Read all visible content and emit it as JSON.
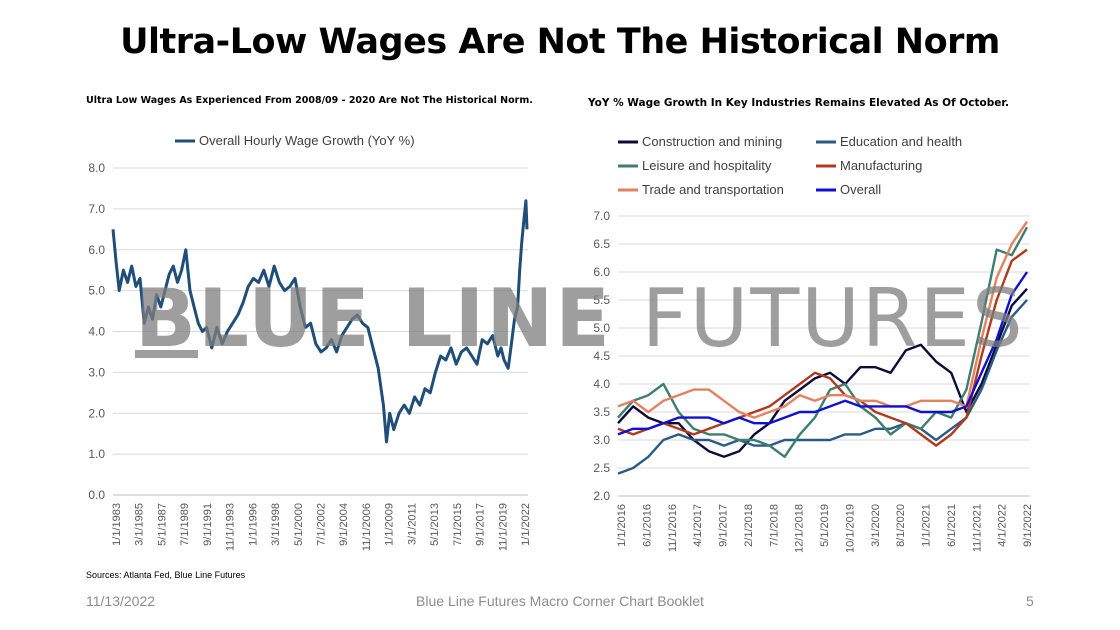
{
  "title": "Ultra-Low Wages Are Not The Historical Norm",
  "left_subtitle": "Ultra Low Wages As Experienced From 2008/09 - 2020 Are Not The Historical Norm.",
  "right_subtitle": "YoY % Wage Growth In Key Industries Remains Elevated As Of October.",
  "sources": "Sources: Atlanta Fed, Blue Line Futures",
  "watermark": {
    "part1": "B",
    "part2": "LUE LINE ",
    "part3": "FUTURES"
  },
  "footer": {
    "date": "11/13/2022",
    "center": "Blue Line Futures Macro Corner Chart Booklet",
    "page": "5"
  },
  "chart_data": [
    {
      "type": "line",
      "legend_position": "top",
      "ylim": [
        0,
        8
      ],
      "yticks": [
        "0.0",
        "1.0",
        "2.0",
        "3.0",
        "4.0",
        "5.0",
        "6.0",
        "7.0",
        "8.0"
      ],
      "xlim": [
        1983.0,
        2022.9
      ],
      "xticks": [
        "1/1/1983",
        "3/1/1985",
        "5/1/1987",
        "7/1/1989",
        "9/1/1991",
        "11/1/1993",
        "1/1/1996",
        "3/1/1998",
        "5/1/2000",
        "7/1/2002",
        "9/1/2004",
        "11/1/2006",
        "1/1/2009",
        "3/1/2011",
        "5/1/2013",
        "7/1/2015",
        "9/1/2017",
        "11/1/2019",
        "1/1/2022"
      ],
      "grid": true,
      "series": [
        {
          "name": "Overall Hourly Wage Growth (YoY %)",
          "color": "#1f4e79",
          "x": [
            1983.0,
            1983.3,
            1983.6,
            1984.0,
            1984.4,
            1984.8,
            1985.2,
            1985.6,
            1986.0,
            1986.4,
            1986.8,
            1987.2,
            1987.6,
            1988.0,
            1988.4,
            1988.8,
            1989.2,
            1989.6,
            1990.0,
            1990.4,
            1990.8,
            1991.2,
            1991.6,
            1992.0,
            1992.5,
            1993.0,
            1993.5,
            1994.0,
            1994.5,
            1995.0,
            1995.5,
            1996.0,
            1996.5,
            1997.0,
            1997.5,
            1998.0,
            1998.5,
            1999.0,
            1999.5,
            2000.0,
            2000.5,
            2001.0,
            2001.5,
            2002.0,
            2002.5,
            2003.0,
            2003.5,
            2004.0,
            2004.5,
            2005.0,
            2005.5,
            2006.0,
            2006.5,
            2007.0,
            2007.5,
            2008.0,
            2008.5,
            2009.0,
            2009.3,
            2009.6,
            2010.0,
            2010.5,
            2011.0,
            2011.5,
            2012.0,
            2012.5,
            2013.0,
            2013.5,
            2014.0,
            2014.5,
            2015.0,
            2015.5,
            2016.0,
            2016.5,
            2017.0,
            2017.5,
            2018.0,
            2018.5,
            2019.0,
            2019.5,
            2020.0,
            2020.3,
            2020.6,
            2021.0,
            2021.3,
            2021.6,
            2021.9,
            2022.1,
            2022.3,
            2022.5,
            2022.7,
            2022.8
          ],
          "y": [
            6.5,
            5.7,
            5.0,
            5.5,
            5.2,
            5.6,
            5.1,
            5.3,
            4.2,
            4.6,
            4.3,
            4.9,
            4.6,
            5.0,
            5.4,
            5.6,
            5.2,
            5.5,
            6.0,
            5.0,
            4.6,
            4.2,
            4.0,
            4.1,
            3.6,
            4.1,
            3.7,
            4.0,
            4.2,
            4.4,
            4.7,
            5.1,
            5.3,
            5.2,
            5.5,
            5.1,
            5.6,
            5.2,
            5.0,
            5.1,
            5.3,
            4.6,
            4.1,
            4.2,
            3.7,
            3.5,
            3.6,
            3.8,
            3.5,
            3.9,
            4.1,
            4.3,
            4.4,
            4.2,
            4.1,
            3.6,
            3.1,
            2.2,
            1.3,
            2.0,
            1.6,
            2.0,
            2.2,
            2.0,
            2.4,
            2.2,
            2.6,
            2.5,
            3.0,
            3.4,
            3.3,
            3.6,
            3.2,
            3.5,
            3.6,
            3.4,
            3.2,
            3.8,
            3.7,
            3.9,
            3.4,
            3.6,
            3.3,
            3.1,
            3.7,
            4.3,
            4.6,
            5.5,
            6.2,
            6.7,
            7.2,
            6.5
          ]
        }
      ]
    },
    {
      "type": "line",
      "legend_position": "top",
      "ylim": [
        2.0,
        7.0
      ],
      "yticks": [
        "2.0",
        "2.5",
        "3.0",
        "3.5",
        "4.0",
        "4.5",
        "5.0",
        "5.5",
        "6.0",
        "6.5",
        "7.0"
      ],
      "xlim": [
        2016.0,
        2022.8
      ],
      "xticks": [
        "1/1/2016",
        "6/1/2016",
        "11/1/2016",
        "4/1/2017",
        "9/1/2017",
        "2/1/2018",
        "7/1/2018",
        "12/1/2018",
        "5/1/2019",
        "10/1/2019",
        "3/1/2020",
        "8/1/2020",
        "1/1/2021",
        "6/1/2021",
        "11/1/2021",
        "4/1/2022",
        "9/1/2022"
      ],
      "grid": true,
      "x": [
        2016.0,
        2016.25,
        2016.5,
        2016.75,
        2017.0,
        2017.25,
        2017.5,
        2017.75,
        2018.0,
        2018.25,
        2018.5,
        2018.75,
        2019.0,
        2019.25,
        2019.5,
        2019.75,
        2020.0,
        2020.25,
        2020.5,
        2020.75,
        2021.0,
        2021.25,
        2021.5,
        2021.75,
        2022.0,
        2022.25,
        2022.5,
        2022.75
      ],
      "series": [
        {
          "name": "Construction and mining",
          "color": "#0c0c3a",
          "y": [
            3.3,
            3.6,
            3.4,
            3.3,
            3.3,
            3.0,
            2.8,
            2.7,
            2.8,
            3.1,
            3.3,
            3.7,
            3.9,
            4.1,
            4.2,
            4.0,
            4.3,
            4.3,
            4.2,
            4.6,
            4.7,
            4.4,
            4.2,
            3.5,
            4.0,
            4.7,
            5.4,
            5.7
          ]
        },
        {
          "name": "Education and health",
          "color": "#2a5a86",
          "y": [
            2.4,
            2.5,
            2.7,
            3.0,
            3.1,
            3.0,
            3.0,
            2.9,
            3.0,
            2.9,
            2.9,
            3.0,
            3.0,
            3.0,
            3.0,
            3.1,
            3.1,
            3.2,
            3.2,
            3.3,
            3.2,
            3.0,
            3.2,
            3.4,
            3.9,
            4.6,
            5.2,
            5.5
          ]
        },
        {
          "name": "Leisure and hospitality",
          "color": "#3e7e6e",
          "y": [
            3.4,
            3.7,
            3.8,
            4.0,
            3.5,
            3.2,
            3.1,
            3.1,
            3.0,
            3.0,
            2.9,
            2.7,
            3.1,
            3.4,
            3.9,
            4.0,
            3.6,
            3.4,
            3.1,
            3.3,
            3.2,
            3.5,
            3.4,
            3.9,
            5.1,
            6.4,
            6.3,
            6.8
          ]
        },
        {
          "name": "Manufacturing",
          "color": "#b03a20",
          "y": [
            3.2,
            3.1,
            3.2,
            3.3,
            3.2,
            3.1,
            3.2,
            3.3,
            3.4,
            3.5,
            3.6,
            3.8,
            4.0,
            4.2,
            4.1,
            3.8,
            3.7,
            3.5,
            3.4,
            3.3,
            3.1,
            2.9,
            3.1,
            3.4,
            4.5,
            5.5,
            6.2,
            6.4
          ]
        },
        {
          "name": "Trade and transportation",
          "color": "#e3825f",
          "y": [
            3.6,
            3.7,
            3.5,
            3.7,
            3.8,
            3.9,
            3.9,
            3.7,
            3.5,
            3.4,
            3.5,
            3.6,
            3.8,
            3.7,
            3.8,
            3.8,
            3.7,
            3.7,
            3.6,
            3.6,
            3.7,
            3.7,
            3.7,
            3.6,
            4.8,
            5.9,
            6.5,
            6.9
          ]
        },
        {
          "name": "Overall",
          "color": "#1010d0",
          "y": [
            3.1,
            3.2,
            3.2,
            3.3,
            3.4,
            3.4,
            3.4,
            3.3,
            3.4,
            3.3,
            3.3,
            3.4,
            3.5,
            3.5,
            3.6,
            3.7,
            3.6,
            3.6,
            3.6,
            3.6,
            3.5,
            3.5,
            3.5,
            3.6,
            4.2,
            4.8,
            5.6,
            6.0
          ]
        }
      ]
    }
  ]
}
